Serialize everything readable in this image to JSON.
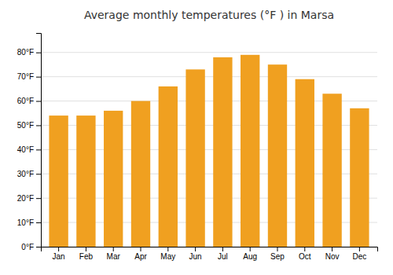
{
  "chart_data": {
    "type": "bar",
    "title": "Average monthly temperatures (°F ) in Marsa",
    "categories": [
      "Jan",
      "Feb",
      "Mar",
      "Apr",
      "May",
      "Jun",
      "Jul",
      "Aug",
      "Sep",
      "Oct",
      "Nov",
      "Dec"
    ],
    "values": [
      54,
      54,
      56,
      60,
      66,
      73,
      78,
      79,
      75,
      69,
      63,
      57
    ],
    "color": "#F0A020",
    "ylim": [
      0,
      88
    ],
    "yticks": [
      {
        "value": 0,
        "label": "0°F"
      },
      {
        "value": 10,
        "label": "10°F"
      },
      {
        "value": 20,
        "label": "20°F"
      },
      {
        "value": 30,
        "label": "30°F"
      },
      {
        "value": 40,
        "label": "40°F"
      },
      {
        "value": 50,
        "label": "50°F"
      },
      {
        "value": 60,
        "label": "60°F"
      },
      {
        "value": 70,
        "label": "70°F"
      },
      {
        "value": 80,
        "label": "80°F"
      }
    ],
    "grid": true
  }
}
